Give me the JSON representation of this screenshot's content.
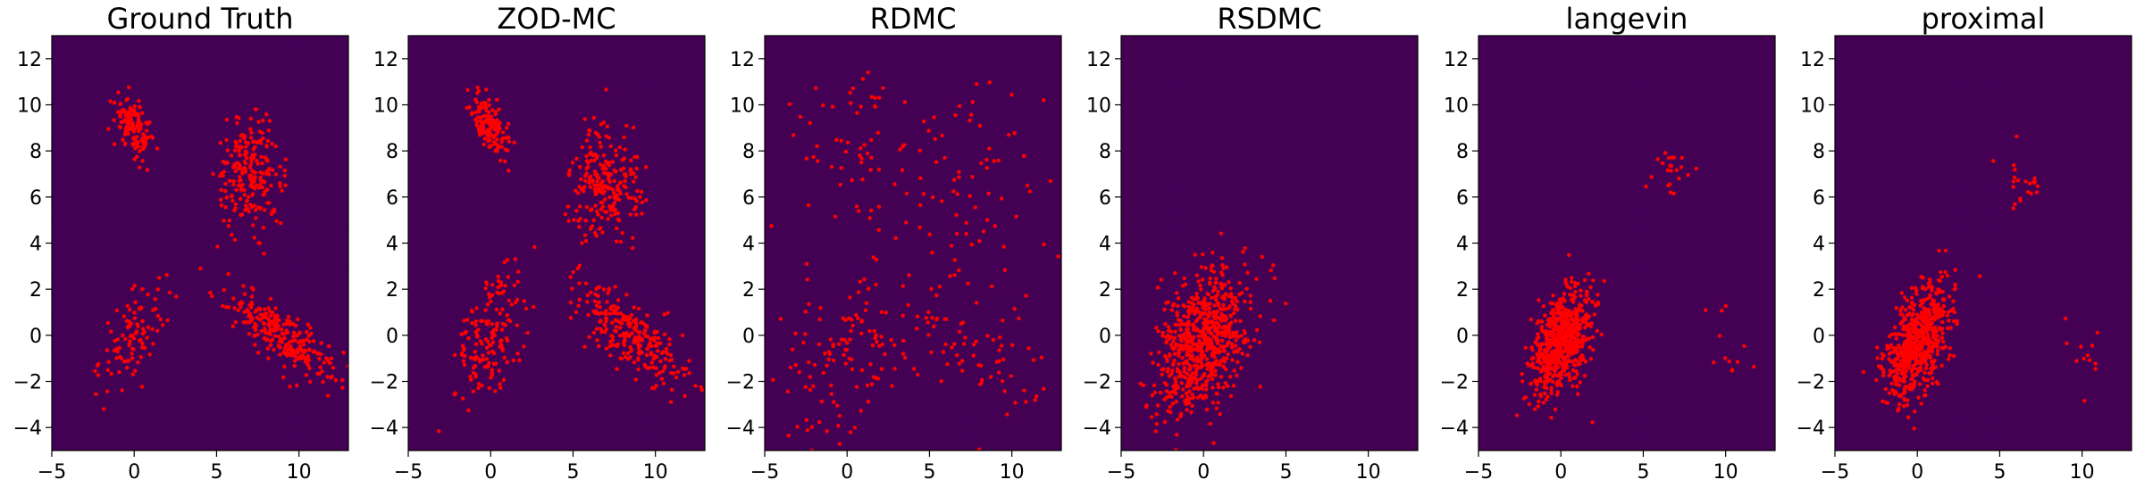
{
  "chart_data": [
    {
      "type": "scatter",
      "title": "Ground Truth",
      "xlim": [
        -5,
        13
      ],
      "ylim": [
        -5,
        13
      ],
      "xticks": [
        -5,
        0,
        5,
        10
      ],
      "yticks": [
        -4,
        -2,
        0,
        2,
        4,
        6,
        8,
        10,
        12
      ],
      "background": "filled contour of the target density (viridis)",
      "point_color": "#ff0000",
      "clusters": [
        {
          "center": [
            0,
            9
          ],
          "spread": [
            0.6,
            0.7
          ],
          "corr": -0.6,
          "n": 140
        },
        {
          "center": [
            7,
            7
          ],
          "spread": [
            1.0,
            1.1
          ],
          "corr": 0.0,
          "n": 220
        },
        {
          "center": [
            0,
            0
          ],
          "spread": [
            1.0,
            1.1
          ],
          "corr": 0.5,
          "n": 100
        },
        {
          "center": [
            9,
            0
          ],
          "spread": [
            1.7,
            1.0
          ],
          "corr": -0.8,
          "n": 260
        }
      ]
    },
    {
      "type": "scatter",
      "title": "ZOD-MC",
      "xlim": [
        -5,
        13
      ],
      "ylim": [
        -5,
        13
      ],
      "xticks": [
        -5,
        0,
        5,
        10
      ],
      "yticks": [
        -4,
        -2,
        0,
        2,
        4,
        6,
        8,
        10,
        12
      ],
      "background": "filled contour of the target density (viridis)",
      "point_color": "#ff0000",
      "clusters": [
        {
          "center": [
            0,
            9
          ],
          "spread": [
            0.6,
            0.7
          ],
          "corr": -0.6,
          "n": 140
        },
        {
          "center": [
            7,
            6.5
          ],
          "spread": [
            1.0,
            1.3
          ],
          "corr": 0.0,
          "n": 240
        },
        {
          "center": [
            0,
            0
          ],
          "spread": [
            1.1,
            1.4
          ],
          "corr": 0.4,
          "n": 160
        },
        {
          "center": [
            8.5,
            0
          ],
          "spread": [
            1.7,
            1.1
          ],
          "corr": -0.8,
          "n": 260
        }
      ]
    },
    {
      "type": "scatter",
      "title": "RDMC",
      "xlim": [
        -5,
        13
      ],
      "ylim": [
        -5,
        13
      ],
      "xticks": [
        -5,
        0,
        5,
        10
      ],
      "yticks": [
        -4,
        -2,
        0,
        2,
        4,
        6,
        8,
        10,
        12
      ],
      "background": "filled contour of the target density (viridis)",
      "point_color": "#ff0000",
      "clusters": [
        {
          "center": [
            0,
            8
          ],
          "spread": [
            1.8,
            2.0
          ],
          "corr": 0.0,
          "n": 60
        },
        {
          "center": [
            7,
            6.5
          ],
          "spread": [
            2.2,
            2.2
          ],
          "corr": 0.0,
          "n": 70
        },
        {
          "center": [
            0,
            -1
          ],
          "spread": [
            2.4,
            2.2
          ],
          "corr": 0.2,
          "n": 130
        },
        {
          "center": [
            8,
            -1
          ],
          "spread": [
            2.2,
            1.8
          ],
          "corr": -0.3,
          "n": 70
        }
      ]
    },
    {
      "type": "scatter",
      "title": "RSDMC",
      "xlim": [
        -5,
        13
      ],
      "ylim": [
        -5,
        13
      ],
      "xticks": [
        -5,
        0,
        5,
        10
      ],
      "yticks": [
        -4,
        -2,
        0,
        2,
        4,
        6,
        8,
        10,
        12
      ],
      "background": "filled contour of the target density (viridis)",
      "point_color": "#ff0000",
      "clusters": [
        {
          "center": [
            0,
            -0.3
          ],
          "spread": [
            1.4,
            1.6
          ],
          "corr": 0.4,
          "n": 720
        }
      ]
    },
    {
      "type": "scatter",
      "title": "langevin",
      "xlim": [
        -5,
        13
      ],
      "ylim": [
        -5,
        13
      ],
      "xticks": [
        -5,
        0,
        5,
        10
      ],
      "yticks": [
        -4,
        -2,
        0,
        2,
        4,
        6,
        8,
        10,
        12
      ],
      "background": "filled contour of the target density (viridis)",
      "point_color": "#ff0000",
      "clusters": [
        {
          "center": [
            0,
            -0.3
          ],
          "spread": [
            1.0,
            1.2
          ],
          "corr": 0.5,
          "n": 640
        },
        {
          "center": [
            6.8,
            7.2
          ],
          "spread": [
            0.6,
            0.6
          ],
          "corr": 0.0,
          "n": 22
        },
        {
          "center": [
            10,
            -0.5
          ],
          "spread": [
            0.9,
            0.9
          ],
          "corr": -0.3,
          "n": 12
        }
      ]
    },
    {
      "type": "scatter",
      "title": "proximal",
      "xlim": [
        -5,
        13
      ],
      "ylim": [
        -5,
        13
      ],
      "xticks": [
        -5,
        0,
        5,
        10
      ],
      "yticks": [
        -4,
        -2,
        0,
        2,
        4,
        6,
        8,
        10,
        12
      ],
      "background": "filled contour of the target density (viridis)",
      "point_color": "#ff0000",
      "clusters": [
        {
          "center": [
            0,
            -0.3
          ],
          "spread": [
            1.0,
            1.2
          ],
          "corr": 0.5,
          "n": 640
        },
        {
          "center": [
            6.5,
            6.8
          ],
          "spread": [
            0.6,
            0.8
          ],
          "corr": 0.0,
          "n": 22
        },
        {
          "center": [
            10,
            -0.5
          ],
          "spread": [
            0.8,
            0.8
          ],
          "corr": -0.3,
          "n": 12
        }
      ]
    }
  ]
}
